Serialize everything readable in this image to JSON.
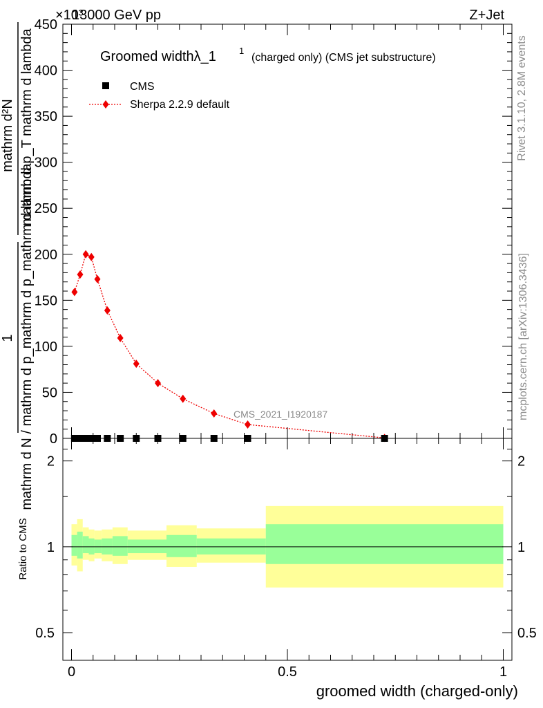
{
  "header": {
    "left": "13000 GeV pp",
    "right": "Z+Jet",
    "multiplier": "×10³"
  },
  "side": {
    "rivet": "Rivet 3.1.10,  2.8M events",
    "mcplots": "mcplots.cern.ch [arXiv:1306.3436]"
  },
  "colors": {
    "mc": "#ee0000",
    "data": "#000000",
    "band_outer": "#ffff99",
    "band_inner": "#99ff99"
  },
  "chart_data": [
    {
      "type": "line",
      "title": "Groomed widthλ_1¹ (charged only) (CMS jet substructure)",
      "title_main": "Groomed widthλ_1",
      "title_sup": "1",
      "title_tail": "(charged only) (CMS jet substructure)",
      "ylabel_num": "1",
      "ylabel_den": "mathrm d N / mathrm d p_mathrm d p_mathrm d lambda",
      "ylabel_num2": "mathrm d²N",
      "ylabel_den2": "mathrm d p_T mathrm d lambda",
      "watermark": "CMS_2021_I1920187",
      "xlim": [
        -0.02,
        1.02
      ],
      "ylim": [
        0,
        450
      ],
      "yticks": [
        0,
        50,
        100,
        150,
        200,
        250,
        300,
        350,
        400,
        450
      ],
      "ytick_labels": [
        "0",
        "50",
        "100",
        "150",
        "200",
        "250",
        "300",
        "350",
        "400",
        "450"
      ],
      "legend_placement": "top-left",
      "series": [
        {
          "name": "CMS",
          "marker": "square",
          "x": [
            0.007,
            0.02,
            0.033,
            0.046,
            0.06,
            0.083,
            0.113,
            0.15,
            0.2,
            0.258,
            0.33,
            0.408,
            0.725
          ],
          "y": [
            0,
            0,
            0,
            0,
            0,
            0,
            0,
            0,
            0,
            0,
            0,
            0,
            0
          ]
        },
        {
          "name": "Sherpa 2.2.9 default",
          "marker": "diamond",
          "x": [
            0.007,
            0.02,
            0.033,
            0.046,
            0.06,
            0.083,
            0.113,
            0.15,
            0.2,
            0.258,
            0.33,
            0.408,
            0.725
          ],
          "y": [
            159,
            178,
            200,
            197,
            173,
            139,
            109,
            81,
            60,
            43,
            27,
            15,
            0.5
          ]
        }
      ]
    },
    {
      "type": "area",
      "ylabel": "Ratio to CMS",
      "xlabel": "groomed width (charged-only)",
      "xlim": [
        -0.02,
        1.02
      ],
      "ylim": [
        0.4,
        2.4
      ],
      "log_y": true,
      "yticks": [
        0.5,
        1,
        2
      ],
      "ytick_labels": [
        "0.5",
        "1",
        "2"
      ],
      "xticks": [
        0,
        0.5,
        1
      ],
      "xtick_labels": [
        "0",
        "0.5",
        "1"
      ],
      "bands": [
        {
          "x0": 0.0,
          "x1": 0.013,
          "outer": [
            0.86,
            1.2
          ],
          "inner": [
            0.93,
            1.1
          ]
        },
        {
          "x0": 0.013,
          "x1": 0.026,
          "outer": [
            0.82,
            1.25
          ],
          "inner": [
            0.91,
            1.13
          ]
        },
        {
          "x0": 0.026,
          "x1": 0.04,
          "outer": [
            0.9,
            1.17
          ],
          "inner": [
            0.95,
            1.09
          ]
        },
        {
          "x0": 0.04,
          "x1": 0.053,
          "outer": [
            0.89,
            1.15
          ],
          "inner": [
            0.94,
            1.07
          ]
        },
        {
          "x0": 0.053,
          "x1": 0.07,
          "outer": [
            0.91,
            1.14
          ],
          "inner": [
            0.95,
            1.06
          ]
        },
        {
          "x0": 0.07,
          "x1": 0.095,
          "outer": [
            0.89,
            1.15
          ],
          "inner": [
            0.94,
            1.07
          ]
        },
        {
          "x0": 0.095,
          "x1": 0.13,
          "outer": [
            0.87,
            1.17
          ],
          "inner": [
            0.93,
            1.09
          ]
        },
        {
          "x0": 0.13,
          "x1": 0.22,
          "outer": [
            0.9,
            1.14
          ],
          "inner": [
            0.95,
            1.06
          ]
        },
        {
          "x0": 0.22,
          "x1": 0.29,
          "outer": [
            0.85,
            1.19
          ],
          "inner": [
            0.92,
            1.1
          ]
        },
        {
          "x0": 0.29,
          "x1": 0.45,
          "outer": [
            0.88,
            1.16
          ],
          "inner": [
            0.94,
            1.07
          ]
        },
        {
          "x0": 0.45,
          "x1": 1.0,
          "outer": [
            0.72,
            1.39
          ],
          "inner": [
            0.87,
            1.2
          ]
        }
      ],
      "ratio_line": 1
    }
  ]
}
